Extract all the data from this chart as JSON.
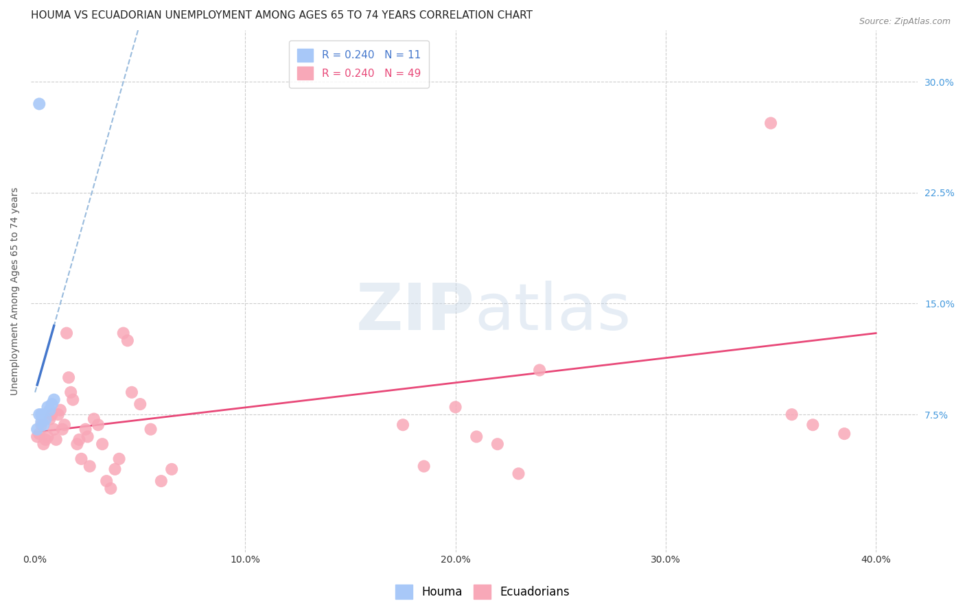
{
  "title": "HOUMA VS ECUADORIAN UNEMPLOYMENT AMONG AGES 65 TO 74 YEARS CORRELATION CHART",
  "source": "Source: ZipAtlas.com",
  "ylabel": "Unemployment Among Ages 65 to 74 years",
  "xlabel_ticks": [
    "0.0%",
    "10.0%",
    "20.0%",
    "30.0%",
    "40.0%"
  ],
  "xlabel_vals": [
    0.0,
    0.1,
    0.2,
    0.3,
    0.4
  ],
  "ylabel_ticks": [
    "7.5%",
    "15.0%",
    "22.5%",
    "30.0%"
  ],
  "ylabel_vals": [
    0.075,
    0.15,
    0.225,
    0.3
  ],
  "xlim": [
    -0.002,
    0.42
  ],
  "ylim": [
    -0.018,
    0.335
  ],
  "houma_R": 0.24,
  "houma_N": 11,
  "ecuador_R": 0.24,
  "ecuador_N": 49,
  "houma_color": "#a8c8f8",
  "ecuador_color": "#f8a8b8",
  "houma_line_color": "#4477cc",
  "ecuador_line_color": "#e84878",
  "trendline_dashed_color": "#99bbdd",
  "background_color": "#ffffff",
  "grid_color": "#cccccc",
  "houma_x": [
    0.001,
    0.002,
    0.002,
    0.003,
    0.003,
    0.004,
    0.005,
    0.006,
    0.007,
    0.008,
    0.009
  ],
  "houma_y": [
    0.065,
    0.075,
    0.285,
    0.07,
    0.075,
    0.068,
    0.072,
    0.08,
    0.078,
    0.082,
    0.085
  ],
  "ecuador_x": [
    0.001,
    0.002,
    0.003,
    0.004,
    0.005,
    0.006,
    0.007,
    0.008,
    0.009,
    0.01,
    0.011,
    0.012,
    0.013,
    0.014,
    0.015,
    0.016,
    0.017,
    0.018,
    0.02,
    0.021,
    0.022,
    0.024,
    0.025,
    0.026,
    0.028,
    0.03,
    0.032,
    0.034,
    0.036,
    0.038,
    0.04,
    0.042,
    0.044,
    0.046,
    0.05,
    0.055,
    0.06,
    0.065,
    0.175,
    0.185,
    0.2,
    0.21,
    0.22,
    0.23,
    0.24,
    0.35,
    0.36,
    0.37,
    0.385
  ],
  "ecuador_y": [
    0.06,
    0.062,
    0.068,
    0.055,
    0.058,
    0.06,
    0.072,
    0.075,
    0.065,
    0.058,
    0.075,
    0.078,
    0.065,
    0.068,
    0.13,
    0.1,
    0.09,
    0.085,
    0.055,
    0.058,
    0.045,
    0.065,
    0.06,
    0.04,
    0.072,
    0.068,
    0.055,
    0.03,
    0.025,
    0.038,
    0.045,
    0.13,
    0.125,
    0.09,
    0.082,
    0.065,
    0.03,
    0.038,
    0.068,
    0.04,
    0.08,
    0.06,
    0.055,
    0.035,
    0.105,
    0.272,
    0.075,
    0.068,
    0.062
  ],
  "watermark_zip": "ZIP",
  "watermark_atlas": "atlas",
  "legend_box_color": "#ffffff",
  "title_fontsize": 11,
  "axis_label_fontsize": 10,
  "tick_fontsize": 10,
  "legend_fontsize": 11,
  "houma_trendline_x": [
    0.001,
    0.009
  ],
  "houma_trendline_y_start": 0.095,
  "houma_trendline_y_end": 0.135,
  "ecuador_trendline_x": [
    0.0,
    0.4
  ],
  "ecuador_trendline_y_start": 0.063,
  "ecuador_trendline_y_end": 0.13
}
